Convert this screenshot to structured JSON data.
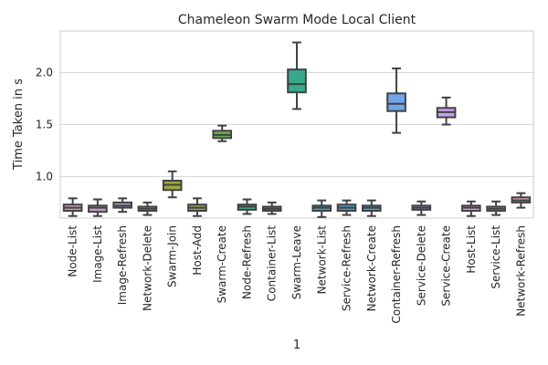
{
  "chart_data": {
    "type": "box",
    "title": "Chameleon Swarm Mode Local Client",
    "xlabel": "1",
    "ylabel": "Time Taken in s",
    "ylim": [
      0.6,
      2.4
    ],
    "yticks": [
      1.0,
      1.5,
      2.0
    ],
    "ytick_labels": [
      "1.0",
      "1.5",
      "2.0"
    ],
    "grid": true,
    "categories": [
      "Node-List",
      "Image-List",
      "Image-Refresh",
      "Network-Delete",
      "Swarm-Join",
      "Host-Add",
      "Swarm-Create",
      "Node-Refresh",
      "Container-List",
      "Swarm-Leave",
      "Network-List",
      "Service-Refresh",
      "Network-Create",
      "Container-Refresh",
      "Service-Delete",
      "Service-Create",
      "Host-List",
      "Service-List",
      "Network-Refresh"
    ],
    "colors": [
      "#c9a0b8",
      "#c49cc2",
      "#a8a6c8",
      "#9fa4c9",
      "#9fa63c",
      "#9aa04d",
      "#6ab04e",
      "#3fa88a",
      "#3ea4a5",
      "#37a88c",
      "#46a0b8",
      "#4aa0c0",
      "#55a2c9",
      "#71a6ea",
      "#9c9ee6",
      "#c8a0e8",
      "#e0a0d8",
      "#d8a4c6",
      "#cfa0b0"
    ],
    "boxes": [
      {
        "whislo": 0.62,
        "q1": 0.67,
        "med": 0.7,
        "q3": 0.73,
        "whishi": 0.79
      },
      {
        "whislo": 0.62,
        "q1": 0.66,
        "med": 0.7,
        "q3": 0.72,
        "whishi": 0.78
      },
      {
        "whislo": 0.66,
        "q1": 0.7,
        "med": 0.72,
        "q3": 0.75,
        "whishi": 0.79
      },
      {
        "whislo": 0.63,
        "q1": 0.67,
        "med": 0.69,
        "q3": 0.71,
        "whishi": 0.75
      },
      {
        "whislo": 0.8,
        "q1": 0.87,
        "med": 0.92,
        "q3": 0.96,
        "whishi": 1.05
      },
      {
        "whislo": 0.62,
        "q1": 0.67,
        "med": 0.7,
        "q3": 0.73,
        "whishi": 0.79
      },
      {
        "whislo": 1.34,
        "q1": 1.37,
        "med": 1.4,
        "q3": 1.44,
        "whishi": 1.49
      },
      {
        "whislo": 0.64,
        "q1": 0.68,
        "med": 0.71,
        "q3": 0.73,
        "whishi": 0.78
      },
      {
        "whislo": 0.64,
        "q1": 0.67,
        "med": 0.69,
        "q3": 0.71,
        "whishi": 0.75
      },
      {
        "whislo": 1.65,
        "q1": 1.81,
        "med": 1.89,
        "q3": 2.03,
        "whishi": 2.29
      },
      {
        "whislo": 0.61,
        "q1": 0.67,
        "med": 0.7,
        "q3": 0.72,
        "whishi": 0.77
      },
      {
        "whislo": 0.63,
        "q1": 0.67,
        "med": 0.7,
        "q3": 0.73,
        "whishi": 0.77
      },
      {
        "whislo": 0.62,
        "q1": 0.67,
        "med": 0.7,
        "q3": 0.72,
        "whishi": 0.77
      },
      {
        "whislo": 1.42,
        "q1": 1.63,
        "med": 1.7,
        "q3": 1.8,
        "whishi": 2.04
      },
      {
        "whislo": 0.63,
        "q1": 0.68,
        "med": 0.7,
        "q3": 0.72,
        "whishi": 0.76
      },
      {
        "whislo": 1.5,
        "q1": 1.57,
        "med": 1.62,
        "q3": 1.66,
        "whishi": 1.76
      },
      {
        "whislo": 0.62,
        "q1": 0.67,
        "med": 0.7,
        "q3": 0.72,
        "whishi": 0.76
      },
      {
        "whislo": 0.63,
        "q1": 0.67,
        "med": 0.69,
        "q3": 0.71,
        "whishi": 0.76
      },
      {
        "whislo": 0.7,
        "q1": 0.75,
        "med": 0.77,
        "q3": 0.8,
        "whishi": 0.84
      }
    ]
  }
}
